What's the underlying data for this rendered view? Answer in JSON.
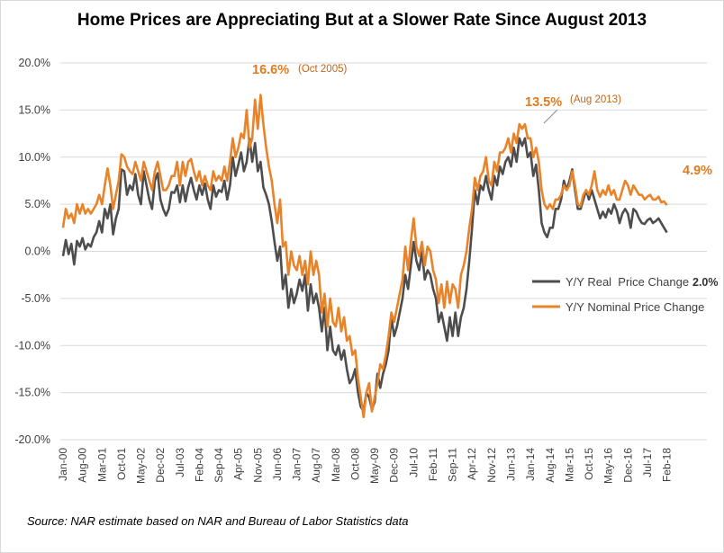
{
  "chart_data": {
    "type": "line",
    "title": "Home Prices are Appreciating But at a Slower Rate Since August 2013",
    "xlabel": "",
    "ylabel": "",
    "ylim": [
      -20,
      20
    ],
    "y_ticks": [
      "20.0%",
      "15.0%",
      "10.0%",
      "5.0%",
      "0.0%",
      "-5.0%",
      "-10.0%",
      "-15.0%",
      "-20.0%"
    ],
    "x_tick_labels": [
      "Jan-00",
      "Aug-00",
      "Mar-01",
      "Oct-01",
      "May-02",
      "Dec-02",
      "Jul-03",
      "Feb-04",
      "Sep-04",
      "Apr-05",
      "Nov-05",
      "Jun-06",
      "Jan-07",
      "Aug-07",
      "Mar-08",
      "Oct-08",
      "May-09",
      "Dec-09",
      "Jul-10",
      "Feb-11",
      "Sep-11",
      "Apr-12",
      "Nov-12",
      "Jun-13",
      "Jan-14",
      "Aug-14",
      "Mar-15",
      "Oct-15",
      "May-16",
      "Dec-16",
      "Jul-17",
      "Feb-18"
    ],
    "x_start": "Jan-00",
    "series": [
      {
        "name": "Y/Y Real  Price Change",
        "color": "#4d4d4d",
        "values": [
          -0.5,
          1.2,
          -0.3,
          0.8,
          -1.4,
          1.1,
          0.5,
          1.4,
          0.2,
          0.8,
          0.5,
          1.5,
          2.0,
          3.2,
          2.0,
          4.5,
          3.5,
          5.0,
          1.8,
          3.5,
          4.5,
          8.7,
          8.5,
          6.0,
          7.0,
          6.5,
          8.2,
          6.0,
          5.0,
          8.5,
          7.0,
          5.5,
          4.5,
          7.5,
          8.3,
          5.5,
          4.5,
          3.8,
          4.5,
          6.3,
          6.2,
          7.0,
          5.2,
          7.0,
          5.3,
          6.8,
          7.8,
          6.5,
          5.5,
          7.0,
          6.0,
          7.2,
          5.5,
          4.5,
          7.0,
          5.8,
          6.5,
          6.3,
          7.5,
          5.5,
          7.0,
          10.0,
          8.0,
          9.2,
          10.5,
          8.5,
          9.5,
          12.0,
          9.5,
          11.5,
          8.5,
          9.5,
          6.8,
          6.0,
          5.0,
          3.2,
          1.0,
          -1.0,
          0.5,
          -4.0,
          -2.5,
          -6.0,
          -4.0,
          -5.5,
          -4.5,
          -3.0,
          -4.2,
          -2.5,
          -6.3,
          -3.5,
          -5.5,
          -4.5,
          -6.0,
          -8.5,
          -6.0,
          -10.5,
          -8.0,
          -10.5,
          -11.0,
          -10.0,
          -11.5,
          -10.5,
          -12.5,
          -14.0,
          -13.5,
          -12.5,
          -15.0,
          -16.5,
          -17.0,
          -15.0,
          -15.5,
          -16.8,
          -16.0,
          -13.0,
          -14.5,
          -13.0,
          -12.0,
          -10.5,
          -7.0,
          -9.0,
          -8.0,
          -6.5,
          -5.0,
          -2.5,
          -4.0,
          -1.5,
          1.0,
          -1.0,
          -2.0,
          0.0,
          -3.0,
          -2.0,
          -2.5,
          -4.0,
          -5.0,
          -7.5,
          -6.5,
          -8.0,
          -9.5,
          -7.0,
          -9.0,
          -6.5,
          -9.0,
          -7.0,
          -6.0,
          -4.0,
          -1.0,
          2.5,
          6.5,
          5.0,
          7.0,
          6.5,
          8.0,
          6.5,
          5.5,
          8.0,
          7.0,
          9.0,
          8.2,
          9.5,
          10.0,
          9.0,
          11.0,
          9.5,
          12.0,
          11.2,
          12.0,
          10.0,
          10.5,
          8.0,
          9.2,
          6.5,
          3.0,
          2.0,
          1.5,
          2.5,
          2.5,
          4.5,
          4.5,
          5.5,
          7.5,
          6.5,
          7.5,
          8.7,
          6.5,
          4.5,
          4.5,
          5.5,
          6.5,
          5.5,
          6.5,
          5.5,
          4.5,
          3.5,
          4.2,
          3.6,
          4.5,
          4.0,
          5.0,
          4.3,
          3.0,
          4.0,
          4.5,
          4.0,
          2.5,
          4.5,
          4.2,
          3.5,
          3.0,
          2.9,
          3.3,
          3.5,
          3.0,
          3.2,
          3.5,
          3.0,
          2.5,
          2.0
        ]
      },
      {
        "name": "Y/Y Nominal Price Change",
        "color": "#e8832a",
        "values": [
          2.5,
          4.5,
          3.5,
          4.0,
          3.0,
          5.0,
          4.0,
          5.0,
          4.0,
          4.5,
          4.0,
          4.5,
          5.0,
          6.0,
          5.0,
          7.0,
          8.8,
          7.0,
          4.5,
          6.0,
          7.5,
          10.3,
          10.0,
          9.0,
          8.5,
          8.2,
          9.5,
          8.5,
          7.5,
          9.5,
          8.5,
          7.5,
          6.5,
          8.5,
          9.5,
          8.0,
          6.5,
          6.5,
          7.0,
          8.0,
          8.0,
          9.5,
          7.0,
          9.5,
          8.0,
          9.5,
          9.8,
          8.5,
          7.5,
          8.5,
          7.0,
          8.0,
          7.0,
          6.5,
          8.5,
          7.5,
          8.0,
          7.5,
          9.0,
          7.5,
          9.5,
          12.0,
          10.0,
          11.0,
          12.5,
          12.0,
          15.0,
          11.0,
          12.0,
          16.1,
          13.0,
          16.6,
          13.5,
          11.0,
          9.0,
          7.5,
          5.0,
          3.0,
          5.5,
          0.5,
          1.0,
          -2.5,
          0.0,
          -1.5,
          -2.0,
          -0.5,
          -2.5,
          -1.0,
          -3.5,
          0.0,
          -2.5,
          -1.0,
          -2.5,
          -6.5,
          -4.5,
          -8.0,
          -5.0,
          -7.5,
          -8.0,
          -6.0,
          -8.5,
          -7.0,
          -9.5,
          -9.0,
          -11.0,
          -10.5,
          -13.5,
          -15.5,
          -17.6,
          -15.0,
          -14.0,
          -17.0,
          -15.5,
          -14.0,
          -12.0,
          -12.5,
          -11.0,
          -9.0,
          -6.5,
          -7.5,
          -6.0,
          -4.5,
          -3.0,
          0.5,
          -2.0,
          1.0,
          3.5,
          0.5,
          -0.5,
          1.0,
          -1.5,
          0.5,
          0.0,
          -2.0,
          -3.0,
          -5.5,
          -3.5,
          -6.0,
          -3.2,
          -5.5,
          -3.5,
          -4.0,
          -6.0,
          -2.5,
          -1.5,
          0.0,
          2.5,
          4.5,
          7.8,
          6.5,
          8.0,
          8.5,
          10.0,
          7.5,
          7.0,
          9.5,
          8.5,
          10.5,
          10.5,
          11.0,
          12.0,
          10.5,
          12.5,
          11.5,
          13.5,
          13.0,
          13.5,
          12.0,
          12.0,
          10.0,
          11.0,
          9.5,
          6.5,
          5.0,
          4.5,
          5.0,
          4.5,
          5.5,
          5.5,
          6.0,
          7.0,
          6.5,
          7.0,
          8.5,
          7.0,
          5.0,
          4.8,
          6.0,
          6.5,
          6.0,
          7.0,
          8.5,
          6.5,
          5.8,
          6.5,
          6.0,
          7.0,
          6.0,
          6.5,
          5.5,
          5.5,
          6.5,
          7.5,
          7.0,
          6.0,
          7.0,
          6.5,
          6.0,
          6.0,
          5.5,
          5.8,
          6.0,
          5.5,
          5.5,
          5.8,
          5.2,
          5.3,
          4.9
        ]
      }
    ],
    "annotations": {
      "peak_nominal_big": "16.6%",
      "peak_nominal_small": "(Oct 2005)",
      "peak2_big": "13.5%",
      "peak2_small": "(Aug 2013)",
      "last_nominal": "4.9%",
      "last_real": "2.0%"
    },
    "legend": [
      "Y/Y Real  Price Change",
      "Y/Y Nominal Price Change"
    ],
    "legend_position": "right-middle",
    "grid": true,
    "source": "Source: NAR estimate based on NAR and Bureau of Labor Statistics data"
  }
}
